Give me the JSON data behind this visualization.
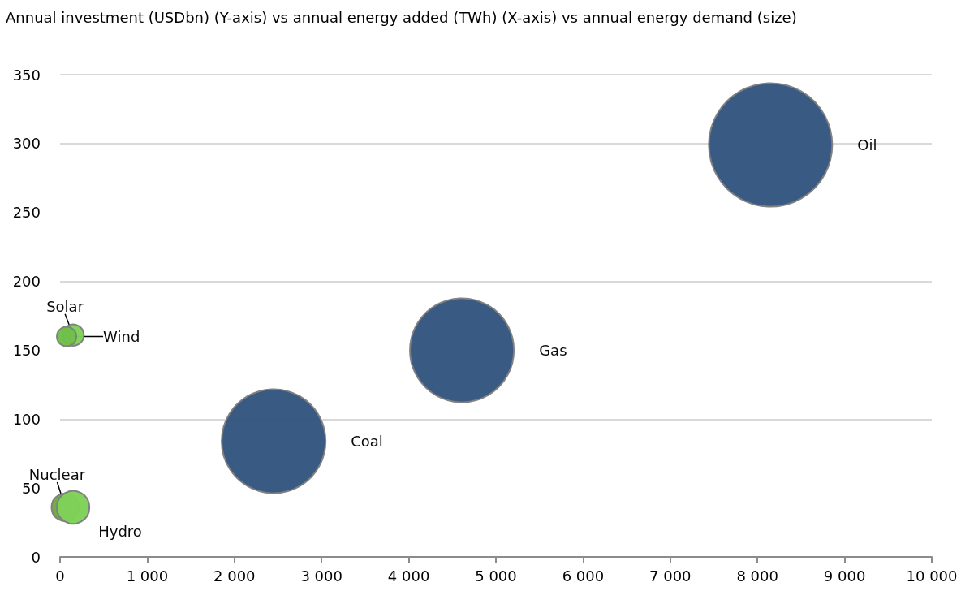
{
  "chart_data": {
    "type": "bubble",
    "title": "Annual investment (USDbn) (Y-axis) vs annual energy added (TWh) (X-axis) vs annual energy demand (size)",
    "series": [
      {
        "name": "Oil",
        "color": "#33557f",
        "x": [
          8150
        ],
        "values": [
          299
        ],
        "sizes": [
          1
        ]
      },
      {
        "name": "Gas",
        "color": "#33557f",
        "x": [
          4610
        ],
        "values": [
          150
        ],
        "sizes": [
          0.71
        ]
      },
      {
        "name": "Coal",
        "color": "#33557f",
        "x": [
          2450
        ],
        "values": [
          84
        ],
        "sizes": [
          0.71
        ]
      },
      {
        "name": "Solar",
        "color": "#7ed257",
        "x": [
          150
        ],
        "values": [
          161
        ],
        "sizes": [
          0.03
        ]
      },
      {
        "name": "Wind",
        "color": "#6fbf4a",
        "x": [
          75
        ],
        "values": [
          160
        ],
        "sizes": [
          0.025
        ]
      },
      {
        "name": "Nuclear",
        "color": "#70a843",
        "x": [
          60
        ],
        "values": [
          36
        ],
        "sizes": [
          0.05
        ]
      },
      {
        "name": "Hydro",
        "color": "#7ed257",
        "x": [
          150
        ],
        "values": [
          36
        ],
        "sizes": [
          0.07
        ]
      }
    ],
    "xlim": [
      0,
      10000
    ],
    "xticks": [
      0,
      {
        "value": 1000,
        "label": "1 000"
      },
      {
        "value": 2000,
        "label": "2 000"
      },
      {
        "value": 3000,
        "label": "3 000"
      },
      {
        "value": 4000,
        "label": "4 000"
      },
      {
        "value": 5000,
        "label": "5 000"
      },
      {
        "value": 6000,
        "label": "6 000"
      },
      {
        "value": 7000,
        "label": "7 000"
      },
      {
        "value": 8000,
        "label": "8 000"
      },
      {
        "value": 9000,
        "label": "9 000"
      },
      {
        "value": 10000,
        "label": "10 000"
      }
    ],
    "ylim": [
      0,
      350
    ],
    "yticks": [
      0,
      50,
      100,
      150,
      200,
      250,
      300,
      350
    ],
    "grid": "y",
    "legend": false
  }
}
